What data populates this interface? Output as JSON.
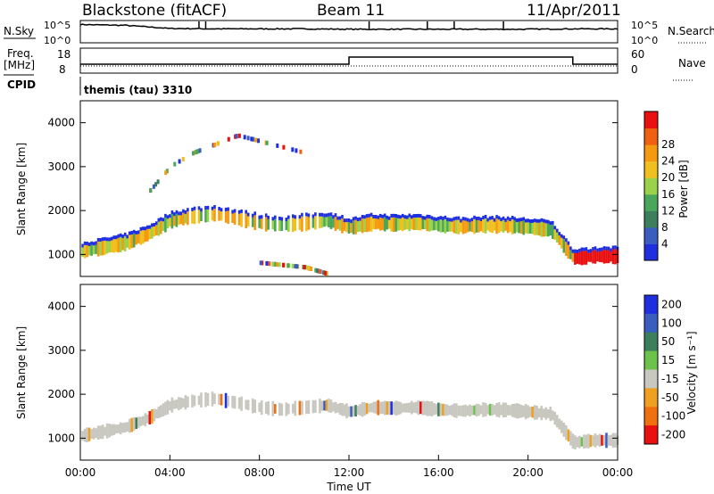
{
  "header": {
    "station": "Blackstone (fitACF)",
    "beam": "Beam 11",
    "date": "11/Apr/2011"
  },
  "panel_labels": {
    "nsky": "N.Sky",
    "nsearch": "N.Search",
    "freq_line1": "Freq.",
    "freq_line2": "[MHz]",
    "nave": "Nave",
    "cpid": "CPID",
    "cpid_value": "themis (tau) 3310"
  },
  "noise_axis": {
    "low": "10^0",
    "high": "10^5"
  },
  "freq_axis": {
    "left_ticks": [
      "18",
      "8"
    ],
    "right_ticks": [
      "60",
      "0"
    ]
  },
  "colors": {
    "power": [
      "#1f2fe0",
      "#3a5ec0",
      "#3d7e5c",
      "#4aa65a",
      "#9ad34a",
      "#f0c020",
      "#f59a10",
      "#f06010",
      "#e81010"
    ],
    "velocity": [
      "#1f2fe0",
      "#3a5ec0",
      "#3d7e5c",
      "#6cc24a",
      "#c8c8c0",
      "#f0a020",
      "#f07010",
      "#e81010"
    ]
  },
  "chart_data": [
    {
      "type": "line",
      "x": [
        0,
        2,
        4,
        6,
        8,
        10,
        12,
        14,
        16,
        18,
        20,
        22,
        24
      ],
      "series": [
        {
          "name": "N.Sky",
          "values": [
            4.2,
            4.0,
            3.2,
            3.1,
            3.1,
            3.1,
            3.0,
            3.0,
            3.0,
            3.0,
            3.0,
            3.1,
            3.1
          ]
        }
      ],
      "xlim": [
        0,
        24
      ]
    },
    {
      "type": "line",
      "x": [
        0,
        12,
        12,
        22,
        22,
        24
      ],
      "series": [
        {
          "name": "Freq.",
          "values": [
            10.5,
            10.5,
            12,
            12,
            10.5,
            10.5
          ]
        },
        {
          "name": "Nave",
          "values": [
            6,
            6,
            6,
            6,
            6,
            6
          ]
        }
      ],
      "xlim": [
        0,
        24
      ]
    },
    {
      "type": "heatmap",
      "title": "Power",
      "ylabel": "Slant Range [km]",
      "colorbar_label": "Power [dB]",
      "colorbar_ticks": [
        "4",
        "8",
        "12",
        "16",
        "20",
        "24",
        "28"
      ],
      "y_ticks": [
        "1000",
        "2000",
        "3000",
        "4000"
      ],
      "ylim": [
        500,
        4500
      ],
      "xlim": [
        0,
        24
      ],
      "series": [
        {
          "name": "main",
          "t": [
            0,
            1,
            2,
            3,
            4,
            5,
            6,
            7,
            8,
            9,
            10,
            11,
            12,
            13,
            14,
            15,
            16,
            17,
            18,
            19,
            20,
            21,
            22,
            23,
            24
          ],
          "range": [
            1050,
            1150,
            1250,
            1450,
            1750,
            1850,
            1900,
            1800,
            1700,
            1650,
            1700,
            1750,
            1600,
            1700,
            1680,
            1700,
            1650,
            1620,
            1650,
            1640,
            1600,
            1550,
            900,
            950,
            950
          ]
        },
        {
          "name": "lower",
          "t": [
            8,
            9,
            10,
            11
          ],
          "range": [
            800,
            750,
            700,
            550
          ]
        },
        {
          "name": "high",
          "t": [
            3,
            4,
            5,
            6,
            7,
            10
          ],
          "range": [
            2400,
            3000,
            3300,
            3500,
            3700,
            3300
          ]
        }
      ]
    },
    {
      "type": "heatmap",
      "title": "Velocity",
      "ylabel": "Slant Range [km]",
      "colorbar_label": "Velocity [m s⁻¹]",
      "colorbar_ticks": [
        "200",
        "100",
        "50",
        "15",
        "-15",
        "-50",
        "-100",
        "-200"
      ],
      "y_ticks": [
        "1000",
        "2000",
        "3000",
        "4000"
      ],
      "ylim": [
        500,
        4500
      ],
      "xlim": [
        0,
        24
      ],
      "series": [
        {
          "name": "main",
          "t": [
            0,
            1,
            2,
            3,
            4,
            5,
            6,
            7,
            8,
            9,
            10,
            11,
            12,
            13,
            14,
            15,
            16,
            17,
            18,
            19,
            20,
            21,
            22,
            23,
            24
          ],
          "range": [
            1050,
            1150,
            1250,
            1450,
            1750,
            1850,
            1900,
            1800,
            1700,
            1650,
            1700,
            1750,
            1600,
            1700,
            1680,
            1700,
            1650,
            1620,
            1650,
            1640,
            1600,
            1550,
            900,
            950,
            950
          ]
        }
      ]
    }
  ],
  "x_axis": {
    "ticks": [
      "00:00",
      "04:00",
      "08:00",
      "12:00",
      "16:00",
      "20:00",
      "00:00"
    ],
    "label": "Time UT"
  }
}
